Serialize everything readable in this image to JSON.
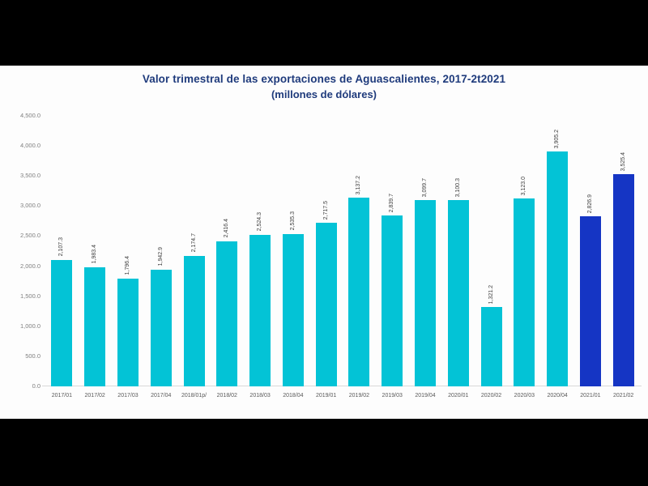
{
  "frame": {
    "letterbox_color": "#000000",
    "stage_background": "#fdfdfd"
  },
  "header": {
    "title": "Valor trimestral de las exportaciones de Aguascalientes, 2017-2t2021",
    "subtitle": "(millones de dólares)",
    "title_color": "#1f3b7c"
  },
  "chart_data": {
    "type": "bar",
    "title": "Valor trimestral de las exportaciones de Aguascalientes, 2017-2t2021",
    "subtitle": "(millones de dólares)",
    "categories": [
      "2017/01",
      "2017/02",
      "2017/03",
      "2017/04",
      "2018/01p/",
      "2018/02",
      "2018/03",
      "2018/04",
      "2019/01",
      "2019/02",
      "2019/03",
      "2019/04",
      "2020/01",
      "2020/02",
      "2020/03",
      "2020/04",
      "2021/01",
      "2021/02"
    ],
    "values": [
      2107.3,
      1983.4,
      1796.4,
      1942.9,
      2174.7,
      2416.4,
      2524.3,
      2535.3,
      2717.5,
      3137.2,
      2839.7,
      3099.7,
      3100.3,
      1321.2,
      3123.0,
      3905.2,
      2826.9,
      3525.4
    ],
    "value_labels": [
      "2,107.3",
      "1,983.4",
      "1,796.4",
      "1,942.9",
      "2,174.7",
      "2,416.4",
      "2,524.3",
      "2,535.3",
      "2,717.5",
      "3,137.2",
      "2,839.7",
      "3,099.7",
      "3,100.3",
      "1,321.2",
      "3,123.0",
      "3,905.2",
      "2,826.9",
      "3,525.4"
    ],
    "xlabel": "",
    "ylabel": "",
    "ylim": [
      0,
      4500
    ],
    "y_ticks": [
      "0.0",
      "500.0",
      "1,000.0",
      "1,500.0",
      "2,000.0",
      "2,500.0",
      "3,000.0",
      "3,500.0",
      "4,000.0",
      "4,500.0"
    ],
    "grid": false,
    "legend_position": "none",
    "bar_color_default": "#03c3d6",
    "bar_color_highlight": "#1535c4",
    "highlight_categories": [
      "2021/01",
      "2021/02"
    ],
    "value_label_rotation_deg": 90,
    "axis_label_color": "#7f7f7f",
    "value_label_color": "#404040"
  }
}
